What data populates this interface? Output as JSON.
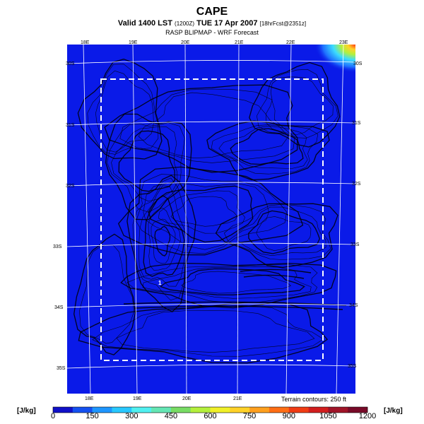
{
  "header": {
    "title": "CAPE",
    "valid_text": "Valid 1400 LST",
    "valid_small": "(1200Z)",
    "date_text": "TUE 17 Apr 2007",
    "fcst_small": "[18hrFcst@2351z]",
    "model_text": "RASP BLIPMAP - WRF Forecast"
  },
  "map": {
    "lon_top": [
      "18E",
      "19E",
      "20E",
      "21E",
      "22E",
      "23E"
    ],
    "lon_bottom": [
      "18E",
      "19E",
      "20E",
      "21E"
    ],
    "lat_left": [
      "30S",
      "31S",
      "32S",
      "33S",
      "34S",
      "35S"
    ],
    "lat_right": [
      "30S",
      "31S",
      "32S",
      "33S",
      "34S",
      "35S"
    ],
    "site_marker": "1",
    "background_color": "#0a1ae8"
  },
  "legend": {
    "unit_left": "[J/kg]",
    "unit_right": "[J/kg]",
    "ticks": [
      "0",
      "150",
      "300",
      "450",
      "600",
      "750",
      "900",
      "1050",
      "1200"
    ],
    "terrain_note": "Terrain contours: 250 ft",
    "colors": [
      "#1010c8",
      "#1450f0",
      "#1e96ff",
      "#28c8ff",
      "#50f0f0",
      "#64e6b4",
      "#78dc64",
      "#b4f03c",
      "#f0f028",
      "#ffd228",
      "#ffa01e",
      "#ff6e14",
      "#f03c14",
      "#d21e1e",
      "#a01428",
      "#780a28"
    ]
  }
}
